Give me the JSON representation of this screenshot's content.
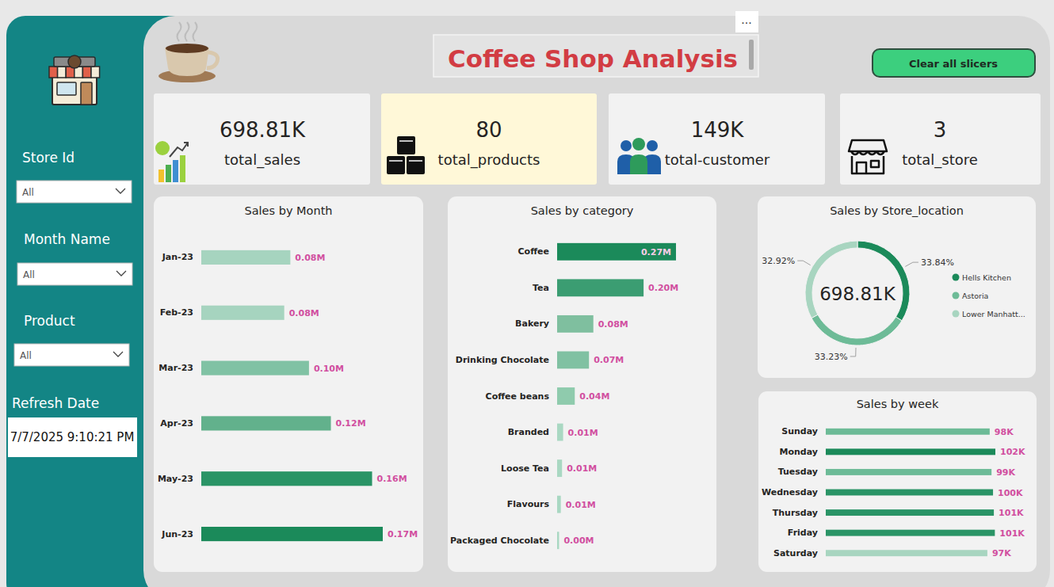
{
  "header": {
    "title": "Coffee Shop Analysis",
    "menu": "...",
    "button": "Clear all slicers"
  },
  "sidebar": {
    "slicers": [
      {
        "label": "Store Id",
        "value": "All"
      },
      {
        "label": "Month Name",
        "value": "All"
      },
      {
        "label": "Product",
        "value": "All"
      }
    ],
    "refresh_label": "Refresh Date",
    "refresh_date": "7/7/2025 9:10:21 PM"
  },
  "kpis": [
    {
      "value": "698.81K",
      "label": "total_sales"
    },
    {
      "value": "80",
      "label": "total_products"
    },
    {
      "value": "149K",
      "label": "total-customer"
    },
    {
      "value": "3",
      "label": "total_store"
    }
  ],
  "chart_data": [
    {
      "type": "bar",
      "title": "Sales by Month",
      "orientation": "horizontal",
      "data_labels": true,
      "tick_labels": "y",
      "categories": [
        "Jan-23",
        "Feb-23",
        "Mar-23",
        "Apr-23",
        "May-23",
        "Jun-23"
      ],
      "values": [
        0.0817,
        0.0761,
        0.0988,
        0.1189,
        0.1567,
        0.1665
      ],
      "value_labels": [
        "0.08M",
        "0.08M",
        "0.10M",
        "0.12M",
        "0.16M",
        "0.17M"
      ],
      "colors": [
        "#a6d4bf",
        "#a6d4bf",
        "#80c2a4",
        "#62b18c",
        "#2a9466",
        "#1b8a5a"
      ]
    },
    {
      "type": "bar",
      "title": "Sales by category",
      "orientation": "horizontal",
      "data_labels": true,
      "tick_labels": "y",
      "categories": [
        "Coffee",
        "Tea",
        "Bakery",
        "Drinking Chocolate",
        "Coffee beans",
        "Branded",
        "Loose Tea",
        "Flavours",
        "Packaged Chocolate"
      ],
      "values": [
        0.27,
        0.1964,
        0.0823,
        0.0724,
        0.0401,
        0.0136,
        0.0112,
        0.0084,
        0.0044
      ],
      "value_labels": [
        "0.27M",
        "0.20M",
        "0.08M",
        "0.07M",
        "0.04M",
        "0.01M",
        "0.01M",
        "0.01M",
        "0.00M"
      ],
      "colors": [
        "#1b8a5a",
        "#3b9d72",
        "#7fbf9f",
        "#80c1a2",
        "#8fcbad",
        "#a9d8c2",
        "#a9d8c2",
        "#a9d8c2",
        "#a9d8c2"
      ]
    },
    {
      "type": "pie",
      "title": "Sales by Store_location",
      "data_labels": true,
      "legend": "right",
      "categories": [
        "Hells Kitchen",
        "Astoria",
        "Lower Manhatt..."
      ],
      "values": [
        33.84,
        33.23,
        32.92
      ],
      "value_labels": [
        "33.84%",
        "33.23%",
        "32.92%"
      ],
      "colors": [
        "#1b8a5a",
        "#6dbb97",
        "#a8d5c0"
      ],
      "annotations": [
        "698.81K"
      ]
    },
    {
      "type": "bar",
      "title": "Sales by week",
      "orientation": "horizontal",
      "data_labels": true,
      "tick_labels": "y",
      "categories": [
        "Sunday",
        "Monday",
        "Tuesday",
        "Wednesday",
        "Thursday",
        "Friday",
        "Saturday"
      ],
      "values": [
        98.3,
        101.7,
        99.4,
        100.3,
        100.8,
        101.4,
        96.9
      ],
      "value_labels": [
        "98K",
        "102K",
        "99K",
        "100K",
        "101K",
        "101K",
        "97K"
      ],
      "colors": [
        "#6dbb97",
        "#1b8a5a",
        "#6dbb97",
        "#2a9466",
        "#2a9466",
        "#2a9466",
        "#a8d5c0"
      ]
    }
  ]
}
